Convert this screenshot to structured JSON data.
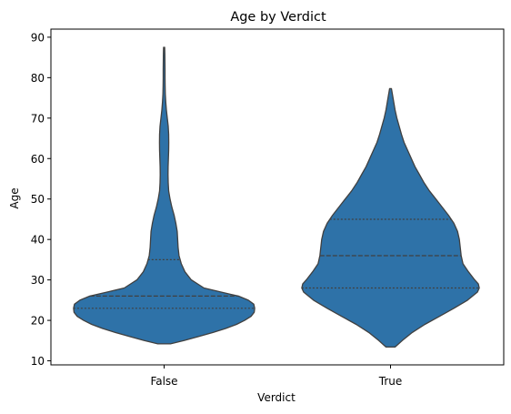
{
  "chart_data": {
    "type": "violin",
    "title": "Age by Verdict",
    "xlabel": "Verdict",
    "ylabel": "Age",
    "categories": [
      "False",
      "True"
    ],
    "ylim": [
      9,
      92
    ],
    "yticks": [
      10,
      20,
      30,
      40,
      50,
      60,
      70,
      80,
      90
    ],
    "grid": false,
    "color": "#2e72a8",
    "edge_color": "#404040",
    "violins": [
      {
        "category": "False",
        "min": 14.2,
        "max": 87.5,
        "quartiles": [
          23,
          26,
          35
        ],
        "density_profile": [
          [
            14.2,
            0.07
          ],
          [
            15,
            0.22
          ],
          [
            16,
            0.38
          ],
          [
            17,
            0.54
          ],
          [
            18,
            0.68
          ],
          [
            19,
            0.8
          ],
          [
            20,
            0.89
          ],
          [
            21,
            0.96
          ],
          [
            22,
            0.995
          ],
          [
            23,
            1.0
          ],
          [
            24,
            0.99
          ],
          [
            25,
            0.93
          ],
          [
            26,
            0.82
          ],
          [
            27,
            0.63
          ],
          [
            28,
            0.44
          ],
          [
            30,
            0.3
          ],
          [
            32,
            0.23
          ],
          [
            34,
            0.19
          ],
          [
            36,
            0.165
          ],
          [
            38,
            0.155
          ],
          [
            40,
            0.15
          ],
          [
            42,
            0.145
          ],
          [
            44,
            0.13
          ],
          [
            46,
            0.11
          ],
          [
            48,
            0.085
          ],
          [
            50,
            0.065
          ],
          [
            52,
            0.05
          ],
          [
            54,
            0.045
          ],
          [
            56,
            0.043
          ],
          [
            58,
            0.044
          ],
          [
            60,
            0.047
          ],
          [
            62,
            0.05
          ],
          [
            64,
            0.051
          ],
          [
            66,
            0.05
          ],
          [
            68,
            0.045
          ],
          [
            70,
            0.035
          ],
          [
            72,
            0.025
          ],
          [
            74,
            0.018
          ],
          [
            76,
            0.013
          ],
          [
            78,
            0.011
          ],
          [
            80,
            0.01
          ],
          [
            82,
            0.01
          ],
          [
            84,
            0.009
          ],
          [
            86,
            0.008
          ],
          [
            87.5,
            0.006
          ]
        ]
      },
      {
        "category": "True",
        "min": 13.4,
        "max": 77.3,
        "quartiles": [
          28,
          36,
          45
        ],
        "density_profile": [
          [
            13.4,
            0.05
          ],
          [
            15,
            0.13
          ],
          [
            17,
            0.24
          ],
          [
            19,
            0.38
          ],
          [
            21,
            0.54
          ],
          [
            23,
            0.7
          ],
          [
            25,
            0.85
          ],
          [
            27,
            0.96
          ],
          [
            28,
            0.98
          ],
          [
            29,
            0.97
          ],
          [
            30,
            0.93
          ],
          [
            32,
            0.86
          ],
          [
            34,
            0.8
          ],
          [
            36,
            0.78
          ],
          [
            38,
            0.77
          ],
          [
            40,
            0.76
          ],
          [
            42,
            0.74
          ],
          [
            44,
            0.7
          ],
          [
            46,
            0.64
          ],
          [
            48,
            0.57
          ],
          [
            50,
            0.5
          ],
          [
            52,
            0.43
          ],
          [
            54,
            0.37
          ],
          [
            56,
            0.32
          ],
          [
            58,
            0.27
          ],
          [
            60,
            0.23
          ],
          [
            62,
            0.19
          ],
          [
            64,
            0.15
          ],
          [
            66,
            0.12
          ],
          [
            68,
            0.095
          ],
          [
            70,
            0.07
          ],
          [
            72,
            0.05
          ],
          [
            74,
            0.035
          ],
          [
            76,
            0.02
          ],
          [
            77.3,
            0.01
          ]
        ]
      }
    ]
  }
}
